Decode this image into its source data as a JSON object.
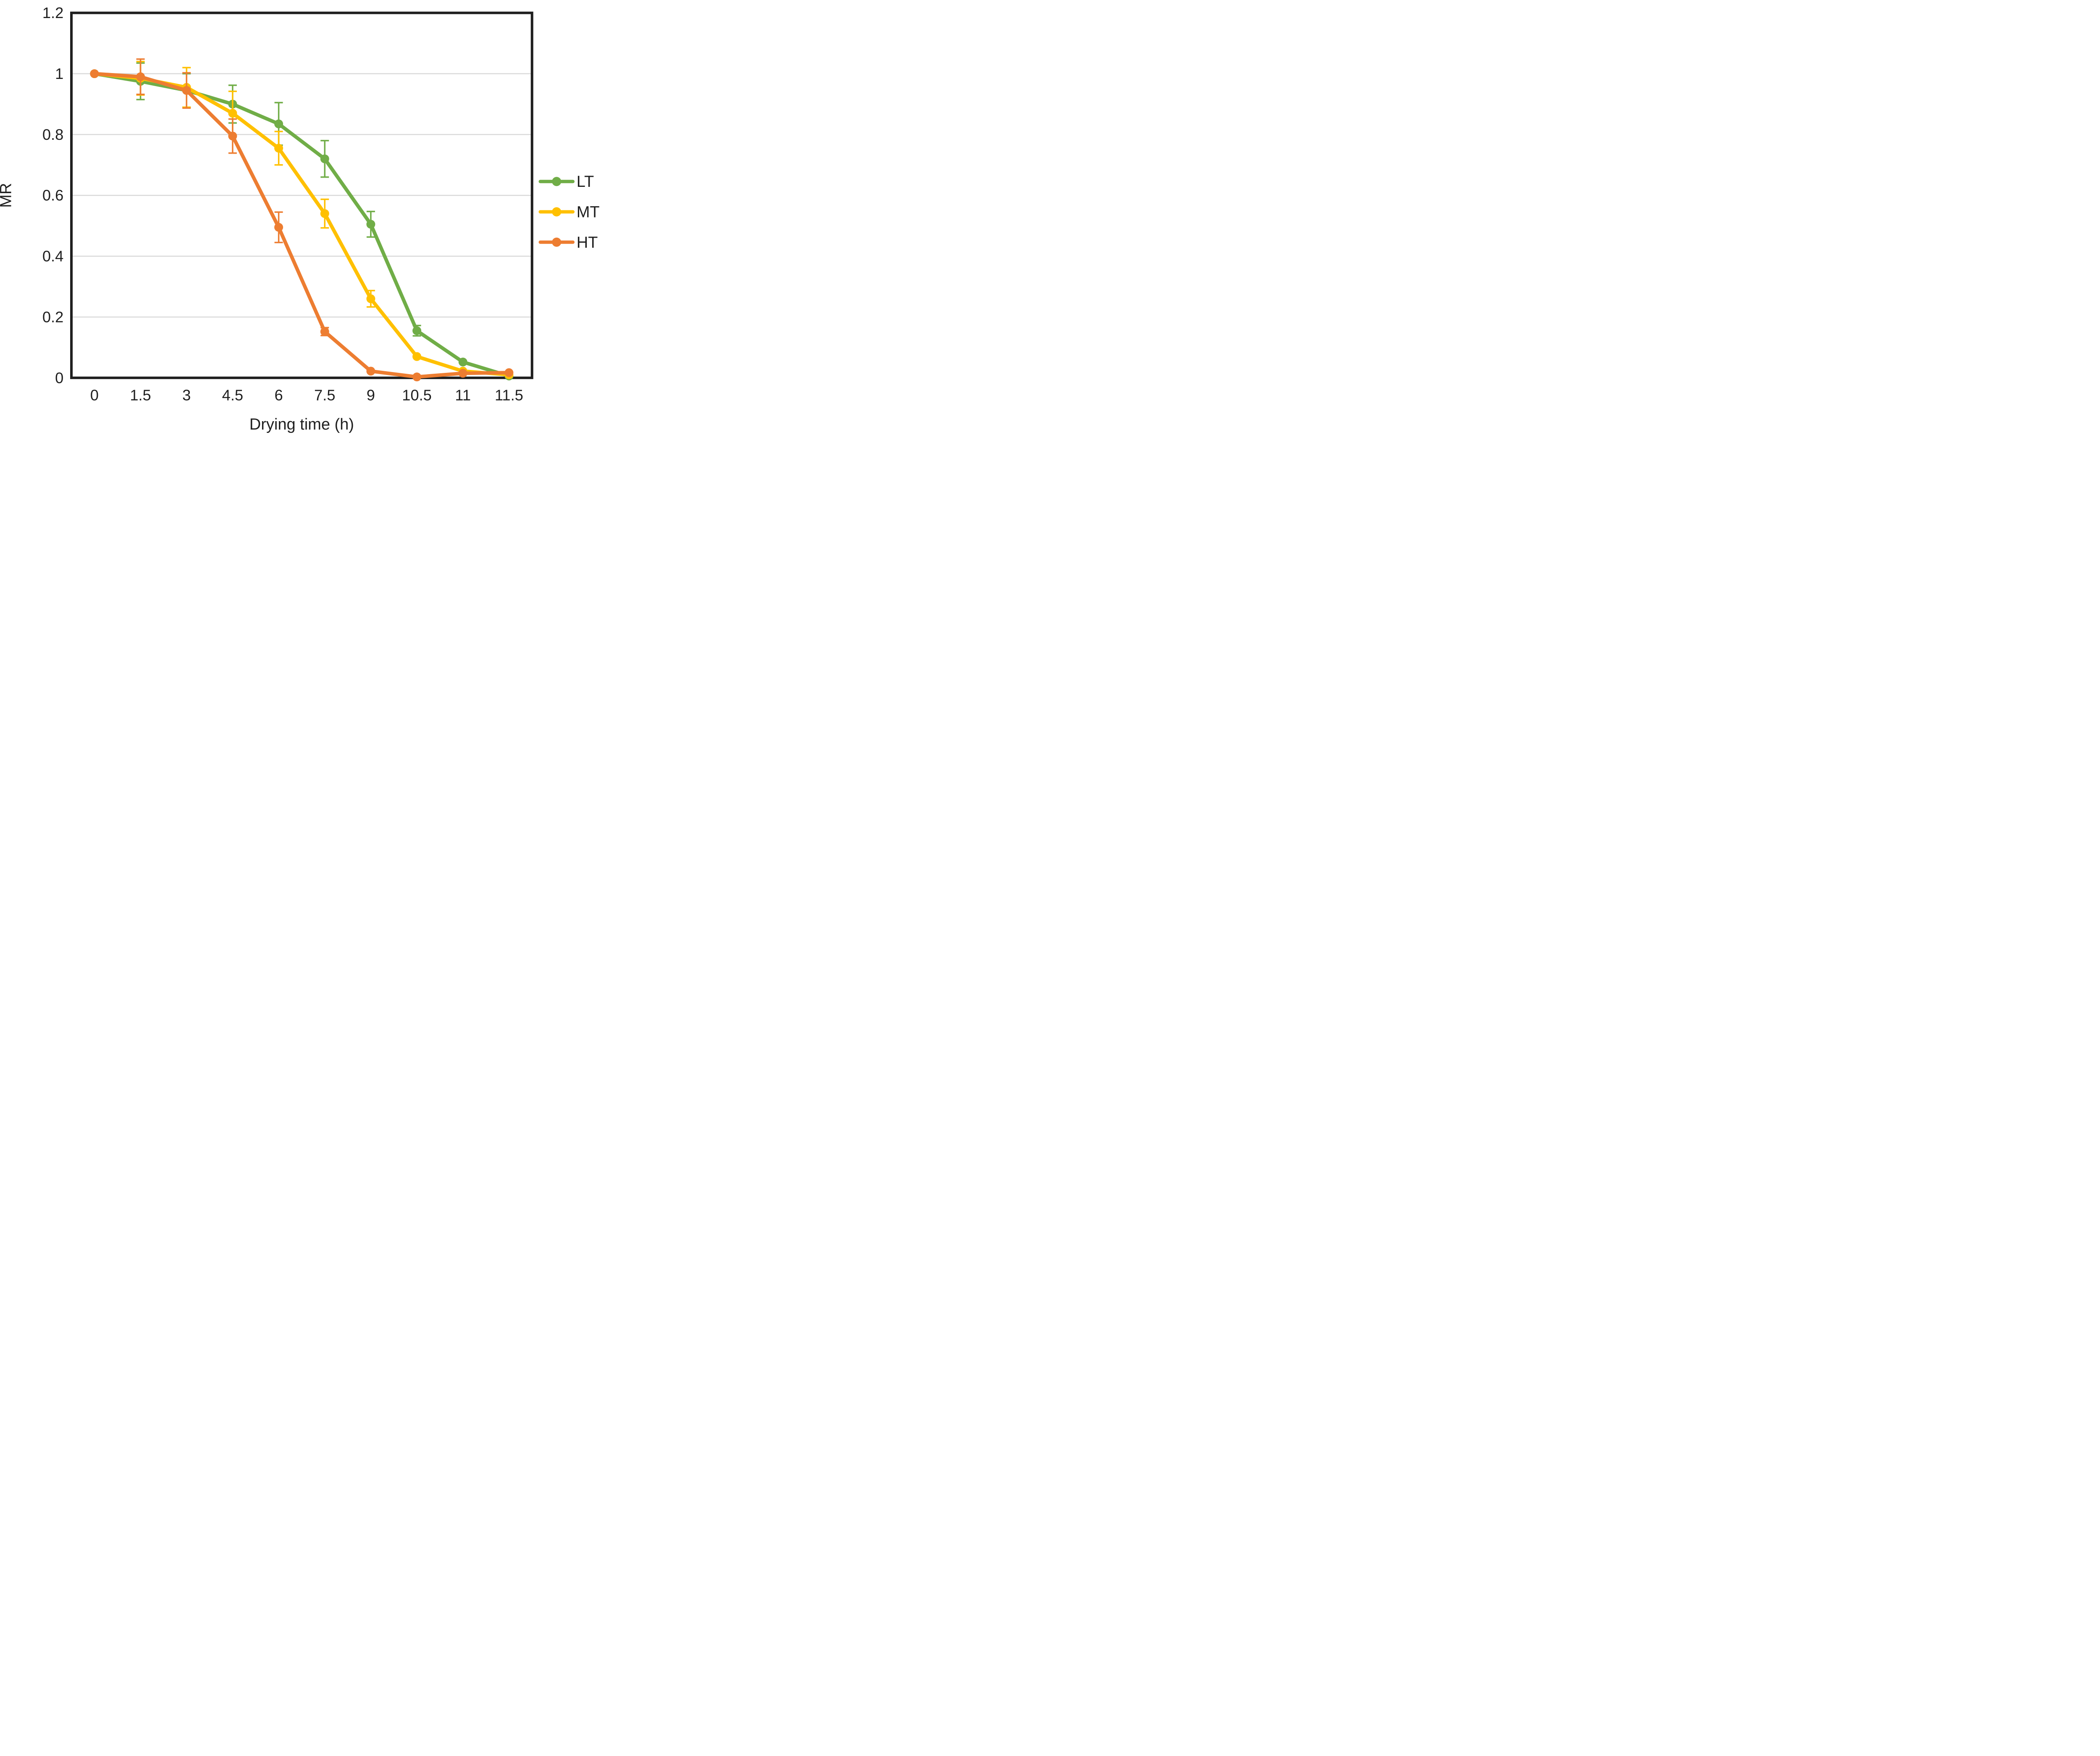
{
  "chart_data": {
    "type": "line",
    "title": "",
    "xlabel": "Drying time (h)",
    "ylabel": "MR",
    "categories": [
      0,
      1.5,
      3,
      4.5,
      6,
      7.5,
      9,
      10.5,
      11,
      11.5
    ],
    "x_tick_labels": [
      "0",
      "1.5",
      "3",
      "4.5",
      "6",
      "7.5",
      "9",
      "10.5",
      "11",
      "11.5"
    ],
    "y_ticks": [
      0,
      0.2,
      0.4,
      0.6,
      0.8,
      1,
      1.2
    ],
    "y_tick_labels": [
      "0",
      "0.2",
      "0.4",
      "0.6",
      "0.8",
      "1",
      "1.2"
    ],
    "ylim": [
      0,
      1.2
    ],
    "grid": "horizontal-light",
    "legend_position": "right-middle",
    "error_bars": true,
    "series": [
      {
        "name": "LT",
        "color": "#70AD47",
        "values": [
          1,
          0.975,
          0.945,
          0.9,
          0.835,
          0.72,
          0.505,
          0.155,
          0.052,
          0.006
        ],
        "errors": [
          0,
          0.06,
          0.055,
          0.062,
          0.07,
          0.06,
          0.042,
          0.017,
          0,
          0
        ]
      },
      {
        "name": "MT",
        "color": "#FFC000",
        "values": [
          1,
          0.985,
          0.955,
          0.87,
          0.755,
          0.54,
          0.26,
          0.07,
          0.022,
          0.01
        ],
        "errors": [
          0,
          0.055,
          0.065,
          0.072,
          0.055,
          0.047,
          0.027,
          0,
          0,
          0
        ]
      },
      {
        "name": "HT",
        "color": "#ED7D31",
        "values": [
          1,
          0.99,
          0.945,
          0.795,
          0.495,
          0.152,
          0.022,
          0.003,
          0.015,
          0.017
        ],
        "errors": [
          0,
          0.058,
          0.058,
          0.056,
          0.05,
          0.013,
          0,
          0,
          0,
          0
        ]
      }
    ]
  },
  "colors": {
    "background": "#FFFFFF",
    "plot_border": "#1F1F1F",
    "gridline": "#D9D9D9",
    "text": "#1F1F1F"
  }
}
